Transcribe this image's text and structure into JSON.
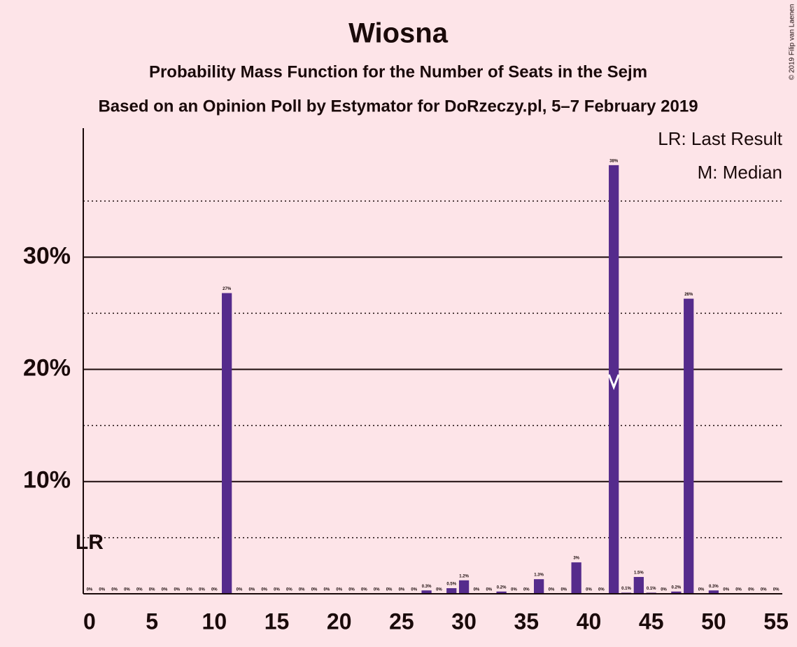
{
  "chart_data": {
    "type": "bar",
    "title": "Wiosna",
    "subtitle": "Probability Mass Function for the Number of Seats in the Sejm",
    "subtitle2": "Based on an Opinion Poll by Estymator for DoRzeczy.pl, 5–7 February 2019",
    "copyright": "© 2019 Filip van Laenen",
    "legend": [
      "LR: Last Result",
      "M: Median"
    ],
    "last_result": {
      "x": 0,
      "label": "LR"
    },
    "median": {
      "x": 42
    },
    "color": "#552b8c",
    "x": [
      0,
      1,
      2,
      3,
      4,
      5,
      6,
      7,
      8,
      9,
      10,
      11,
      12,
      13,
      14,
      15,
      16,
      17,
      18,
      19,
      20,
      21,
      22,
      23,
      24,
      25,
      26,
      27,
      28,
      29,
      30,
      31,
      32,
      33,
      34,
      35,
      36,
      37,
      38,
      39,
      40,
      41,
      42,
      43,
      44,
      45,
      46,
      47,
      48,
      49,
      50,
      51,
      52,
      53,
      54,
      55
    ],
    "values": [
      0,
      0,
      0,
      0,
      0,
      0,
      0,
      0,
      0,
      0,
      0,
      26.8,
      0,
      0,
      0,
      0,
      0,
      0,
      0,
      0,
      0,
      0,
      0,
      0,
      0,
      0,
      0,
      0.3,
      0,
      0.5,
      1.2,
      0,
      0,
      0.2,
      0,
      0,
      1.3,
      0,
      0,
      2.8,
      0,
      0,
      38.2,
      0.1,
      1.5,
      0.1,
      0,
      0.2,
      26.3,
      0,
      0.3,
      0,
      0,
      0,
      0,
      0
    ],
    "value_labels": [
      "0%",
      "0%",
      "0%",
      "0%",
      "0%",
      "0%",
      "0%",
      "0%",
      "0%",
      "0%",
      "0%",
      "27%",
      "0%",
      "0%",
      "0%",
      "0%",
      "0%",
      "0%",
      "0%",
      "0%",
      "0%",
      "0%",
      "0%",
      "0%",
      "0%",
      "0%",
      "0%",
      "0.3%",
      "0%",
      "0.5%",
      "1.2%",
      "0%",
      "0%",
      "0.2%",
      "0%",
      "0%",
      "1.3%",
      "0%",
      "0%",
      "3%",
      "0%",
      "0%",
      "38%",
      "0.1%",
      "1.5%",
      "0.1%",
      "0%",
      "0.2%",
      "26%",
      "0%",
      "0.3%",
      "0%",
      "0%",
      "0%",
      "0%",
      "0%"
    ],
    "xlim": [
      -0.5,
      55.5
    ],
    "xticks": [
      0,
      5,
      10,
      15,
      20,
      25,
      30,
      35,
      40,
      45,
      50,
      55
    ],
    "ylim": [
      0,
      41.5
    ],
    "yticks": [
      {
        "value": 10,
        "label": "10%"
      },
      {
        "value": 20,
        "label": "20%"
      },
      {
        "value": 30,
        "label": "30%"
      }
    ],
    "yminorticks": [
      5,
      15,
      25,
      35
    ],
    "grid": true
  }
}
